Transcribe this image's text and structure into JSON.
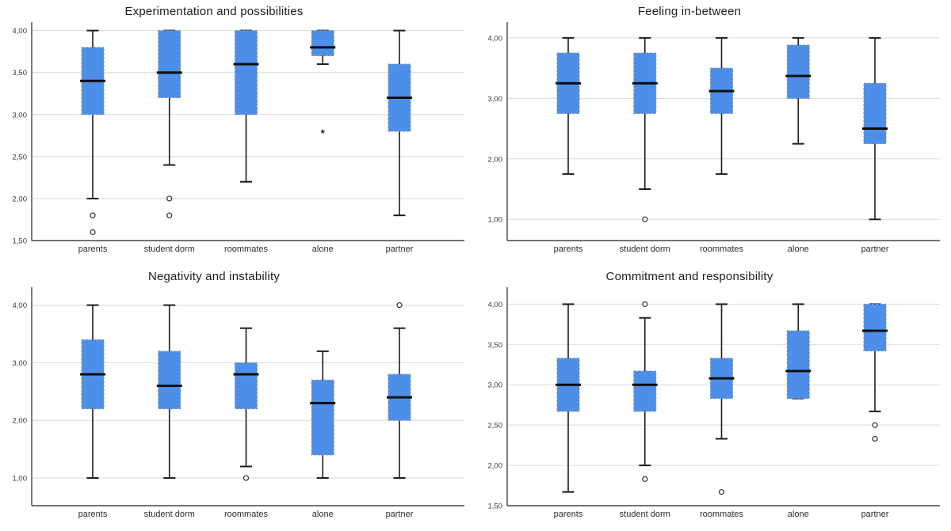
{
  "page": {
    "background": "#ffffff"
  },
  "colors": {
    "box_fill": "#4D8FE8",
    "box_border": "#7C90A8",
    "median": "#0d0d0d",
    "whisker": "#1c1c1c",
    "grid": "#d9d9d9",
    "axis": "#454545",
    "tick_text": "#3a3a3a",
    "category_text": "#2e2e2e",
    "outlier": "#2f2f2f"
  },
  "chart_data": [
    {
      "type": "boxplot",
      "title": "Experimentation and possibilities",
      "categories": [
        "parents",
        "student dorm",
        "roommates",
        "alone",
        "partner"
      ],
      "ylim": [
        1.5,
        4.1
      ],
      "grid": true,
      "legend": "none",
      "yticks": [
        {
          "value": 4.0,
          "label": "4,00"
        },
        {
          "value": 3.5,
          "label": "3,50"
        },
        {
          "value": 3.0,
          "label": "3,00"
        },
        {
          "value": 2.5,
          "label": "2,50"
        },
        {
          "value": 2.0,
          "label": "2,00"
        },
        {
          "value": 1.5,
          "label": "1,50"
        }
      ],
      "series": [
        {
          "category": "parents",
          "whisker_low": 2.0,
          "q1": 3.0,
          "median": 3.4,
          "q3": 3.8,
          "whisker_high": 4.0,
          "outliers": [
            1.8,
            1.6
          ],
          "extremes": []
        },
        {
          "category": "student dorm",
          "whisker_low": 2.4,
          "q1": 3.2,
          "median": 3.5,
          "q3": 4.0,
          "whisker_high": 4.0,
          "outliers": [
            2.0,
            1.8
          ],
          "extremes": []
        },
        {
          "category": "roommates",
          "whisker_low": 2.2,
          "q1": 3.0,
          "median": 3.6,
          "q3": 4.0,
          "whisker_high": 4.0,
          "outliers": [],
          "extremes": []
        },
        {
          "category": "alone",
          "whisker_low": 3.6,
          "q1": 3.7,
          "median": 3.8,
          "q3": 4.0,
          "whisker_high": 4.0,
          "outliers": [],
          "extremes": [
            2.8
          ]
        },
        {
          "category": "partner",
          "whisker_low": 1.8,
          "q1": 2.8,
          "median": 3.2,
          "q3": 3.6,
          "whisker_high": 4.0,
          "outliers": [],
          "extremes": []
        }
      ]
    },
    {
      "type": "boxplot",
      "title": "Feeling in-between",
      "categories": [
        "parents",
        "student dorm",
        "roommates",
        "alone",
        "partner"
      ],
      "ylim": [
        0.65,
        4.26
      ],
      "grid": true,
      "legend": "none",
      "yticks": [
        {
          "value": 4.0,
          "label": "4,00"
        },
        {
          "value": 3.0,
          "label": "3,00"
        },
        {
          "value": 2.0,
          "label": "2,00"
        },
        {
          "value": 1.0,
          "label": "1,00"
        }
      ],
      "series": [
        {
          "category": "parents",
          "whisker_low": 1.75,
          "q1": 2.75,
          "median": 3.25,
          "q3": 3.75,
          "whisker_high": 4.0,
          "outliers": [],
          "extremes": []
        },
        {
          "category": "student dorm",
          "whisker_low": 1.5,
          "q1": 2.75,
          "median": 3.25,
          "q3": 3.75,
          "whisker_high": 4.0,
          "outliers": [
            1.0
          ],
          "extremes": []
        },
        {
          "category": "roommates",
          "whisker_low": 1.75,
          "q1": 2.75,
          "median": 3.12,
          "q3": 3.5,
          "whisker_high": 4.0,
          "outliers": [],
          "extremes": []
        },
        {
          "category": "alone",
          "whisker_low": 2.25,
          "q1": 3.0,
          "median": 3.37,
          "q3": 3.88,
          "whisker_high": 4.0,
          "outliers": [],
          "extremes": []
        },
        {
          "category": "partner",
          "whisker_low": 1.0,
          "q1": 2.25,
          "median": 2.5,
          "q3": 3.25,
          "whisker_high": 4.0,
          "outliers": [],
          "extremes": []
        }
      ]
    },
    {
      "type": "boxplot",
      "title": "Negativity and instability",
      "categories": [
        "parents",
        "student dorm",
        "roommates",
        "alone",
        "partner"
      ],
      "ylim": [
        0.52,
        4.31
      ],
      "grid": true,
      "legend": "none",
      "yticks": [
        {
          "value": 4.0,
          "label": "4,00"
        },
        {
          "value": 3.0,
          "label": "3,00"
        },
        {
          "value": 2.0,
          "label": "2,00"
        },
        {
          "value": 1.0,
          "label": "1,00"
        }
      ],
      "series": [
        {
          "category": "parents",
          "whisker_low": 1.0,
          "q1": 2.2,
          "median": 2.8,
          "q3": 3.4,
          "whisker_high": 4.0,
          "outliers": [],
          "extremes": []
        },
        {
          "category": "student dorm",
          "whisker_low": 1.0,
          "q1": 2.2,
          "median": 2.6,
          "q3": 3.2,
          "whisker_high": 4.0,
          "outliers": [],
          "extremes": []
        },
        {
          "category": "roommates",
          "whisker_low": 1.2,
          "q1": 2.2,
          "median": 2.8,
          "q3": 3.0,
          "whisker_high": 3.6,
          "outliers": [
            1.0
          ],
          "extremes": []
        },
        {
          "category": "alone",
          "whisker_low": 1.0,
          "q1": 1.4,
          "median": 2.3,
          "q3": 2.7,
          "whisker_high": 3.2,
          "outliers": [],
          "extremes": []
        },
        {
          "category": "partner",
          "whisker_low": 1.0,
          "q1": 2.0,
          "median": 2.4,
          "q3": 2.8,
          "whisker_high": 3.6,
          "outliers": [
            4.0
          ],
          "extremes": []
        }
      ]
    },
    {
      "type": "boxplot",
      "title": "Commitment and responsibility",
      "categories": [
        "parents",
        "student dorm",
        "roommates",
        "alone",
        "partner"
      ],
      "ylim": [
        1.5,
        4.21
      ],
      "grid": true,
      "legend": "none",
      "yticks": [
        {
          "value": 4.0,
          "label": "4,00"
        },
        {
          "value": 3.5,
          "label": "3,50"
        },
        {
          "value": 3.0,
          "label": "3,00"
        },
        {
          "value": 2.5,
          "label": "2,50"
        },
        {
          "value": 2.0,
          "label": "2,00"
        },
        {
          "value": 1.5,
          "label": "1,50"
        }
      ],
      "series": [
        {
          "category": "parents",
          "whisker_low": 1.67,
          "q1": 2.67,
          "median": 3.0,
          "q3": 3.33,
          "whisker_high": 4.0,
          "outliers": [],
          "extremes": []
        },
        {
          "category": "student dorm",
          "whisker_low": 2.0,
          "q1": 2.67,
          "median": 3.0,
          "q3": 3.17,
          "whisker_high": 3.83,
          "outliers": [
            4.0,
            1.83
          ],
          "extremes": []
        },
        {
          "category": "roommates",
          "whisker_low": 2.33,
          "q1": 2.83,
          "median": 3.08,
          "q3": 3.33,
          "whisker_high": 4.0,
          "outliers": [
            1.67
          ],
          "extremes": []
        },
        {
          "category": "alone",
          "whisker_low": 2.83,
          "q1": 2.83,
          "median": 3.17,
          "q3": 3.67,
          "whisker_high": 4.0,
          "outliers": [],
          "extremes": []
        },
        {
          "category": "partner",
          "whisker_low": 2.67,
          "q1": 3.42,
          "median": 3.67,
          "q3": 4.0,
          "whisker_high": 4.0,
          "outliers": [
            2.5,
            2.33
          ],
          "extremes": []
        }
      ]
    }
  ]
}
